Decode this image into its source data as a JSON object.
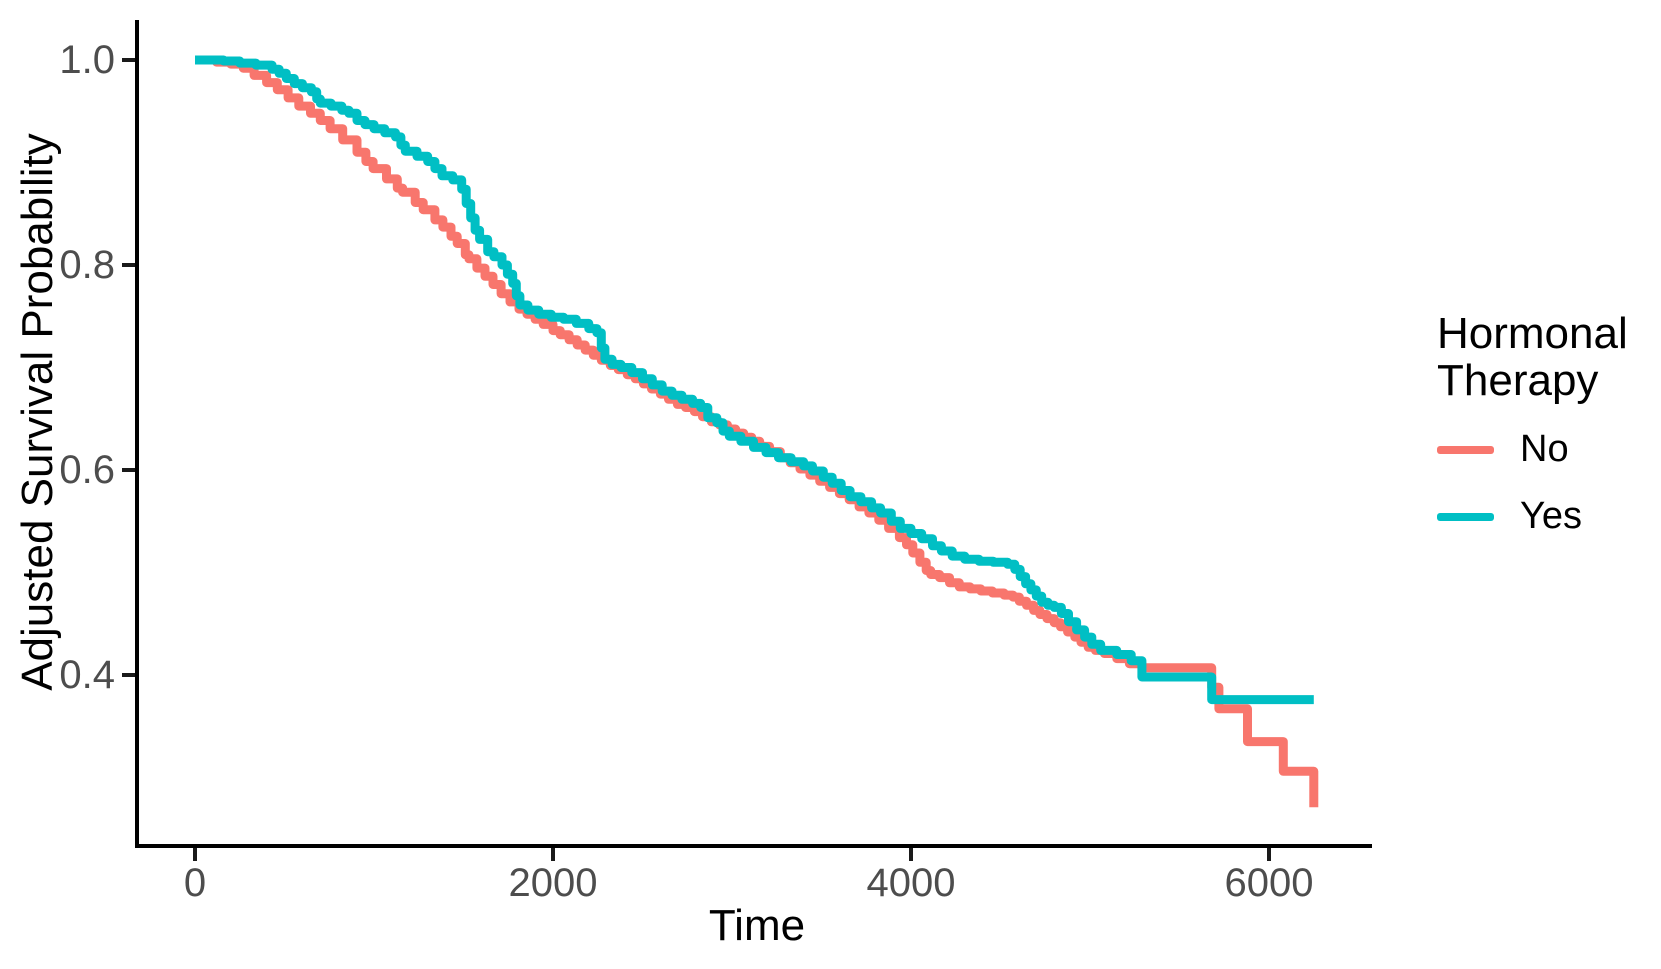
{
  "colors": {
    "background": "#FFFFFF",
    "axis_line": "#000000",
    "tick_mark": "#1A1A1A",
    "tick_text": "#4D4D4D",
    "title_text": "#000000",
    "series_no": "#F8766D",
    "series_yes": "#00BFC4"
  },
  "chart_data": {
    "type": "line",
    "subtype": "kaplan-meier-step-curves",
    "title": "",
    "xlabel": "Time",
    "ylabel": "Adjusted Survival Probability",
    "grid": false,
    "axis_range_displayed": {
      "x": [
        -325,
        6575
      ],
      "y": [
        0.23,
        1.04
      ]
    },
    "x_ticks": [
      {
        "value": 0,
        "label": "0"
      },
      {
        "value": 2000,
        "label": "2000"
      },
      {
        "value": 4000,
        "label": "4000"
      },
      {
        "value": 6000,
        "label": "6000"
      }
    ],
    "y_ticks": [
      {
        "value": 1.0,
        "label": "1.0"
      },
      {
        "value": 0.8,
        "label": "0.8"
      },
      {
        "value": 0.6,
        "label": "0.6"
      },
      {
        "value": 0.4,
        "label": "0.4"
      }
    ],
    "legend": {
      "title": "Hormonal Therapy",
      "title_lines": [
        "Hormonal",
        "Therapy"
      ],
      "position": "right",
      "entries": [
        {
          "label": "No",
          "color": "#F8766D"
        },
        {
          "label": "Yes",
          "color": "#00BFC4"
        }
      ]
    },
    "series": [
      {
        "name": "No",
        "color": "#F8766D",
        "step": "after",
        "points": [
          [
            0,
            1.0
          ],
          [
            120,
            0.998
          ],
          [
            200,
            0.996
          ],
          [
            270,
            0.992
          ],
          [
            330,
            0.985
          ],
          [
            400,
            0.978
          ],
          [
            460,
            0.971
          ],
          [
            520,
            0.963
          ],
          [
            580,
            0.955
          ],
          [
            645,
            0.948
          ],
          [
            700,
            0.941
          ],
          [
            755,
            0.933
          ],
          [
            825,
            0.922
          ],
          [
            905,
            0.91
          ],
          [
            955,
            0.901
          ],
          [
            995,
            0.894
          ],
          [
            1070,
            0.884
          ],
          [
            1130,
            0.875
          ],
          [
            1160,
            0.871
          ],
          [
            1230,
            0.861
          ],
          [
            1275,
            0.854
          ],
          [
            1340,
            0.844
          ],
          [
            1385,
            0.837
          ],
          [
            1430,
            0.828
          ],
          [
            1465,
            0.821
          ],
          [
            1510,
            0.81
          ],
          [
            1530,
            0.806
          ],
          [
            1575,
            0.797
          ],
          [
            1620,
            0.789
          ],
          [
            1665,
            0.781
          ],
          [
            1710,
            0.772
          ],
          [
            1760,
            0.764
          ],
          [
            1810,
            0.757
          ],
          [
            1855,
            0.752
          ],
          [
            1900,
            0.747
          ],
          [
            1945,
            0.742
          ],
          [
            2000,
            0.736
          ],
          [
            2040,
            0.732
          ],
          [
            2090,
            0.727
          ],
          [
            2135,
            0.722
          ],
          [
            2180,
            0.717
          ],
          [
            2225,
            0.712
          ],
          [
            2270,
            0.707
          ],
          [
            2320,
            0.702
          ],
          [
            2365,
            0.698
          ],
          [
            2415,
            0.693
          ],
          [
            2460,
            0.689
          ],
          [
            2505,
            0.684
          ],
          [
            2550,
            0.679
          ],
          [
            2600,
            0.674
          ],
          [
            2645,
            0.669
          ],
          [
            2695,
            0.664
          ],
          [
            2740,
            0.661
          ],
          [
            2790,
            0.657
          ],
          [
            2835,
            0.652
          ],
          [
            2885,
            0.647
          ],
          [
            2930,
            0.644
          ],
          [
            2975,
            0.64
          ],
          [
            3020,
            0.636
          ],
          [
            3065,
            0.632
          ],
          [
            3110,
            0.628
          ],
          [
            3155,
            0.623
          ],
          [
            3210,
            0.618
          ],
          [
            3270,
            0.612
          ],
          [
            3325,
            0.607
          ],
          [
            3380,
            0.601
          ],
          [
            3435,
            0.595
          ],
          [
            3490,
            0.589
          ],
          [
            3545,
            0.583
          ],
          [
            3600,
            0.577
          ],
          [
            3655,
            0.571
          ],
          [
            3710,
            0.564
          ],
          [
            3765,
            0.558
          ],
          [
            3820,
            0.551
          ],
          [
            3875,
            0.543
          ],
          [
            3935,
            0.534
          ],
          [
            3975,
            0.527
          ],
          [
            4010,
            0.519
          ],
          [
            4050,
            0.51
          ],
          [
            4085,
            0.502
          ],
          [
            4110,
            0.498
          ],
          [
            4160,
            0.495
          ],
          [
            4215,
            0.49
          ],
          [
            4270,
            0.486
          ],
          [
            4330,
            0.484
          ],
          [
            4390,
            0.482
          ],
          [
            4455,
            0.48
          ],
          [
            4520,
            0.478
          ],
          [
            4570,
            0.476
          ],
          [
            4605,
            0.472
          ],
          [
            4645,
            0.468
          ],
          [
            4685,
            0.463
          ],
          [
            4720,
            0.459
          ],
          [
            4760,
            0.455
          ],
          [
            4800,
            0.451
          ],
          [
            4835,
            0.447
          ],
          [
            4875,
            0.442
          ],
          [
            4915,
            0.437
          ],
          [
            4950,
            0.432
          ],
          [
            4990,
            0.427
          ],
          [
            5030,
            0.424
          ],
          [
            5080,
            0.421
          ],
          [
            5150,
            0.416
          ],
          [
            5220,
            0.411
          ],
          [
            5290,
            0.407
          ],
          [
            5680,
            0.388
          ],
          [
            5720,
            0.367
          ],
          [
            5880,
            0.335
          ],
          [
            6080,
            0.306
          ],
          [
            6250,
            0.271
          ]
        ]
      },
      {
        "name": "Yes",
        "color": "#00BFC4",
        "step": "after",
        "points": [
          [
            0,
            1.0
          ],
          [
            160,
            0.999
          ],
          [
            250,
            0.997
          ],
          [
            340,
            0.995
          ],
          [
            430,
            0.991
          ],
          [
            470,
            0.987
          ],
          [
            510,
            0.982
          ],
          [
            555,
            0.977
          ],
          [
            600,
            0.973
          ],
          [
            650,
            0.969
          ],
          [
            680,
            0.962
          ],
          [
            700,
            0.958
          ],
          [
            760,
            0.955
          ],
          [
            820,
            0.951
          ],
          [
            860,
            0.948
          ],
          [
            905,
            0.941
          ],
          [
            950,
            0.937
          ],
          [
            1000,
            0.933
          ],
          [
            1060,
            0.929
          ],
          [
            1120,
            0.925
          ],
          [
            1150,
            0.917
          ],
          [
            1175,
            0.911
          ],
          [
            1240,
            0.906
          ],
          [
            1300,
            0.901
          ],
          [
            1340,
            0.894
          ],
          [
            1380,
            0.887
          ],
          [
            1440,
            0.883
          ],
          [
            1490,
            0.874
          ],
          [
            1515,
            0.86
          ],
          [
            1540,
            0.846
          ],
          [
            1565,
            0.834
          ],
          [
            1590,
            0.825
          ],
          [
            1635,
            0.813
          ],
          [
            1670,
            0.808
          ],
          [
            1715,
            0.8
          ],
          [
            1745,
            0.791
          ],
          [
            1775,
            0.782
          ],
          [
            1795,
            0.77
          ],
          [
            1815,
            0.761
          ],
          [
            1860,
            0.756
          ],
          [
            1920,
            0.752
          ],
          [
            1990,
            0.749
          ],
          [
            2060,
            0.747
          ],
          [
            2130,
            0.743
          ],
          [
            2200,
            0.738
          ],
          [
            2245,
            0.734
          ],
          [
            2270,
            0.719
          ],
          [
            2290,
            0.708
          ],
          [
            2330,
            0.703
          ],
          [
            2380,
            0.7
          ],
          [
            2440,
            0.695
          ],
          [
            2500,
            0.689
          ],
          [
            2555,
            0.683
          ],
          [
            2610,
            0.677
          ],
          [
            2665,
            0.673
          ],
          [
            2720,
            0.669
          ],
          [
            2780,
            0.665
          ],
          [
            2825,
            0.661
          ],
          [
            2865,
            0.651
          ],
          [
            2915,
            0.646
          ],
          [
            2950,
            0.638
          ],
          [
            2985,
            0.633
          ],
          [
            3050,
            0.628
          ],
          [
            3120,
            0.622
          ],
          [
            3190,
            0.617
          ],
          [
            3260,
            0.612
          ],
          [
            3330,
            0.608
          ],
          [
            3400,
            0.604
          ],
          [
            3450,
            0.599
          ],
          [
            3510,
            0.593
          ],
          [
            3560,
            0.587
          ],
          [
            3610,
            0.58
          ],
          [
            3660,
            0.574
          ],
          [
            3720,
            0.569
          ],
          [
            3780,
            0.563
          ],
          [
            3830,
            0.558
          ],
          [
            3890,
            0.55
          ],
          [
            3940,
            0.543
          ],
          [
            4000,
            0.538
          ],
          [
            4060,
            0.533
          ],
          [
            4120,
            0.526
          ],
          [
            4170,
            0.521
          ],
          [
            4230,
            0.516
          ],
          [
            4300,
            0.513
          ],
          [
            4380,
            0.511
          ],
          [
            4460,
            0.51
          ],
          [
            4540,
            0.508
          ],
          [
            4580,
            0.503
          ],
          [
            4610,
            0.496
          ],
          [
            4640,
            0.489
          ],
          [
            4670,
            0.483
          ],
          [
            4700,
            0.477
          ],
          [
            4730,
            0.471
          ],
          [
            4765,
            0.468
          ],
          [
            4800,
            0.466
          ],
          [
            4840,
            0.46
          ],
          [
            4880,
            0.452
          ],
          [
            4925,
            0.444
          ],
          [
            4970,
            0.437
          ],
          [
            5010,
            0.43
          ],
          [
            5060,
            0.424
          ],
          [
            5150,
            0.42
          ],
          [
            5230,
            0.414
          ],
          [
            5290,
            0.398
          ],
          [
            5680,
            0.376
          ],
          [
            6250,
            0.376
          ]
        ]
      }
    ]
  }
}
